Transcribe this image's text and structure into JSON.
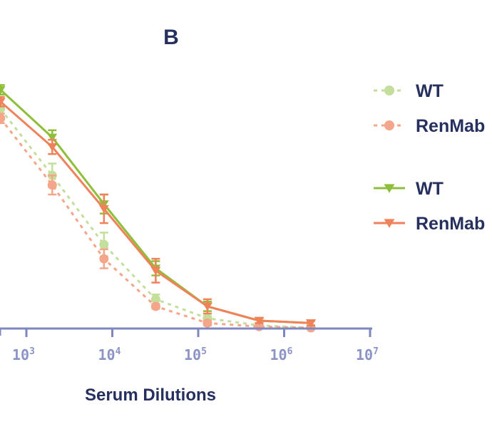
{
  "chart_data": {
    "type": "line",
    "title": "B",
    "xlabel": "Serum Dilutions",
    "ylabel": "",
    "x_scale": "log",
    "xlim": [
      1000,
      10000000
    ],
    "ylim": [
      0,
      1
    ],
    "x_ticks": [
      {
        "value": 1000,
        "base": "10",
        "exp": "3"
      },
      {
        "value": 10000,
        "base": "10",
        "exp": "4"
      },
      {
        "value": 100000,
        "base": "10",
        "exp": "5"
      },
      {
        "value": 1000000,
        "base": "10",
        "exp": "6"
      },
      {
        "value": 10000000,
        "base": "10",
        "exp": "7"
      }
    ],
    "x": [
      500,
      2000,
      8000,
      32000,
      128000,
      512000,
      2048000
    ],
    "series": [
      {
        "name": "WT",
        "style": "dashed",
        "marker": "circle",
        "color": "#c4df9b",
        "values": [
          0.92,
          0.64,
          0.35,
          0.12,
          0.04,
          0.01,
          0.0
        ],
        "errors": [
          0.02,
          0.05,
          0.05,
          0.02,
          0.01,
          0.005,
          0.005
        ]
      },
      {
        "name": "RenMab",
        "style": "dashed",
        "marker": "circle",
        "color": "#f5a68a",
        "values": [
          0.88,
          0.6,
          0.29,
          0.09,
          0.02,
          0.005,
          0.0
        ],
        "errors": [
          0.02,
          0.04,
          0.04,
          0.01,
          0.01,
          0.005,
          0.005
        ]
      },
      {
        "name": "WT",
        "style": "solid",
        "marker": "triangle-down",
        "color": "#8fbf3a",
        "values": [
          1.0,
          0.8,
          0.52,
          0.25,
          0.09,
          0.03,
          0.02
        ],
        "errors": [
          0.02,
          0.03,
          0.04,
          0.03,
          0.02,
          0.01,
          0.01
        ]
      },
      {
        "name": "RenMab",
        "style": "solid",
        "marker": "triangle-down",
        "color": "#f0825a",
        "values": [
          0.95,
          0.76,
          0.5,
          0.24,
          0.09,
          0.03,
          0.02
        ],
        "errors": [
          0.02,
          0.03,
          0.06,
          0.05,
          0.03,
          0.01,
          0.01
        ]
      }
    ],
    "grid": false,
    "legend_position": "right"
  }
}
